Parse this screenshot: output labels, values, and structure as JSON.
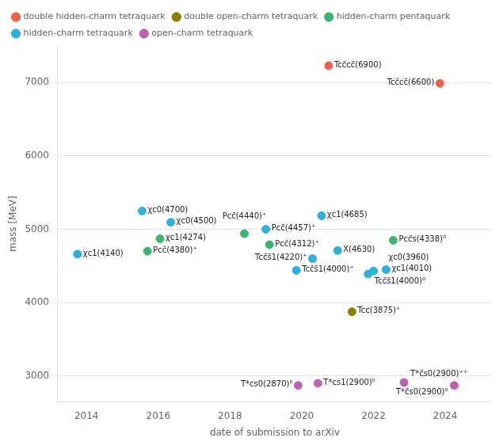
{
  "chart_data": {
    "type": "scatter",
    "xlabel": "date of submission to arXiv",
    "ylabel": "mass [MeV]",
    "xlim": [
      2013.2,
      2025.3
    ],
    "ylim": [
      2650,
      7500
    ],
    "xticks": [
      2014,
      2016,
      2018,
      2020,
      2022,
      2024
    ],
    "yticks": [
      3000,
      4000,
      5000,
      6000,
      7000
    ],
    "grid": "y",
    "legend": "upper left",
    "series": [
      {
        "name": "double hidden-charm tetraquark",
        "color": "#f0604a",
        "x": [
          2020.75,
          2023.85
        ],
        "values": [
          7230,
          6990
        ],
        "labels": [
          "Tcc̄cc̄(6900)",
          "Tcc̄cc̄(6600)"
        ]
      },
      {
        "name": "double open-charm tetraquark",
        "color": "#8b8000",
        "x": [
          2021.4
        ],
        "values": [
          3875
        ],
        "labels": [
          "Tcc(3875)⁺"
        ]
      },
      {
        "name": "hidden-charm pentaquark",
        "color": "#3cb371",
        "x": [
          2015.7,
          2016.05,
          2018.4,
          2019.1,
          2022.55
        ],
        "values": [
          4700,
          4870,
          4940,
          4790,
          4850
        ],
        "labels": [
          "Pcc̄(4380)⁺",
          "χc1(4274)",
          "Pcc̄(4440)⁺",
          "Pcc̄(4312)⁺",
          "Pcc̄s(4338)⁰"
        ]
      },
      {
        "name": "hidden-charm tetraquark",
        "color": "#30b0d8",
        "x": [
          2013.75,
          2015.55,
          2016.35,
          2019.0,
          2019.85,
          2020.3,
          2020.55,
          2021.0,
          2021.85,
          2022.0,
          2022.35
        ],
        "values": [
          4660,
          5250,
          5095,
          5000,
          4440,
          4600,
          5185,
          4710,
          4390,
          4430,
          4450
        ],
        "labels": [
          "χc1(4140)",
          "χc0(4700)",
          "χc0(4500)",
          "Pcc̄(4457)⁺",
          "Tcc̄s̄1(4000)⁺",
          "Tcc̄s̄1(4220)⁺",
          "χc1(4685)",
          "X(4630)",
          "Tcc̄s̄1(4000)⁰",
          "χc0(3960)",
          "χc1(4010)"
        ]
      },
      {
        "name": "open-charm tetraquark",
        "color": "#c060b0",
        "x": [
          2019.9,
          2020.45,
          2022.85,
          2024.25
        ],
        "values": [
          2870,
          2900,
          2910,
          2870
        ],
        "labels": [
          "T*cs0(2870)⁰",
          "T*cs1(2900)⁰",
          "T*c̄s0(2900)⁺⁺",
          "T*c̄s0(2900)⁰"
        ]
      }
    ]
  }
}
